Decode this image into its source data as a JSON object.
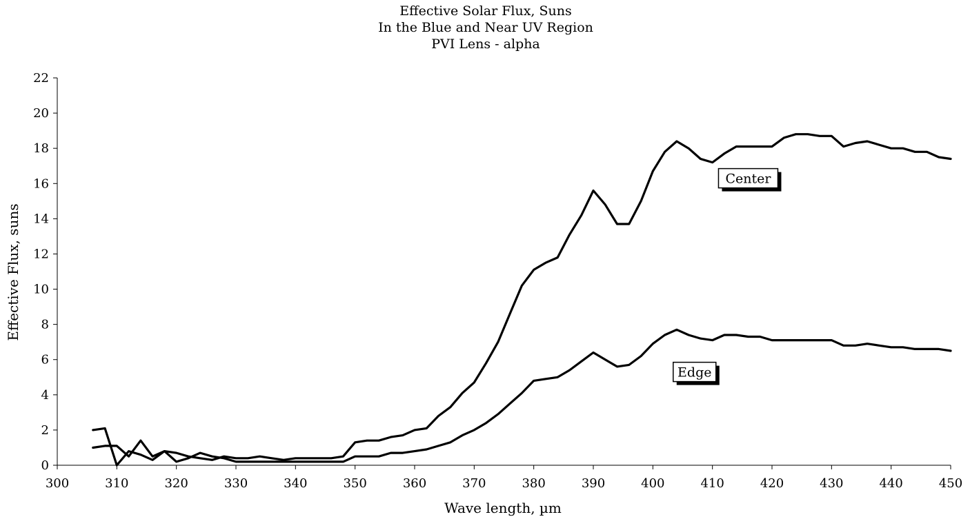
{
  "chart_data": {
    "type": "line",
    "title": [
      "Effective Solar Flux, Suns",
      "In the Blue and Near UV Region",
      "PVI Lens - alpha"
    ],
    "xlabel": "Wave length, µm",
    "ylabel": "Effective Flux, suns",
    "xlim": [
      300,
      450
    ],
    "ylim": [
      0,
      22
    ],
    "xticks": [
      300,
      310,
      320,
      330,
      340,
      350,
      360,
      370,
      380,
      390,
      400,
      410,
      420,
      430,
      440,
      450
    ],
    "yticks": [
      0,
      2,
      4,
      6,
      8,
      10,
      12,
      14,
      16,
      18,
      20,
      22
    ],
    "grid": false,
    "legend": "none",
    "series": [
      {
        "name": "Center",
        "color": "#000000",
        "x": [
          306,
          308,
          310,
          312,
          314,
          316,
          318,
          320,
          322,
          324,
          326,
          328,
          330,
          332,
          334,
          336,
          338,
          340,
          342,
          344,
          346,
          348,
          350,
          352,
          354,
          356,
          358,
          360,
          362,
          364,
          366,
          368,
          370,
          372,
          374,
          376,
          378,
          380,
          382,
          384,
          386,
          388,
          390,
          392,
          394,
          396,
          398,
          400,
          402,
          404,
          406,
          408,
          410,
          412,
          414,
          416,
          418,
          420,
          422,
          424,
          426,
          428,
          430,
          432,
          434,
          436,
          438,
          440,
          442,
          444,
          446,
          448,
          450
        ],
        "y": [
          2.0,
          2.1,
          0.0,
          0.8,
          0.6,
          0.3,
          0.8,
          0.7,
          0.5,
          0.4,
          0.3,
          0.5,
          0.4,
          0.4,
          0.5,
          0.4,
          0.3,
          0.4,
          0.4,
          0.4,
          0.4,
          0.5,
          1.3,
          1.4,
          1.4,
          1.6,
          1.7,
          2.0,
          2.1,
          2.8,
          3.3,
          4.1,
          4.7,
          5.8,
          7.0,
          8.6,
          10.2,
          11.1,
          11.5,
          11.8,
          13.1,
          14.2,
          15.6,
          14.8,
          13.7,
          13.7,
          15.0,
          16.7,
          17.8,
          18.4,
          18.0,
          17.4,
          17.2,
          17.7,
          18.1,
          18.1,
          18.1,
          18.1,
          18.6,
          18.8,
          18.8,
          18.7,
          18.7,
          18.1,
          18.3,
          18.4,
          18.2,
          18.0,
          18.0,
          17.8,
          17.8,
          17.5,
          17.4
        ]
      },
      {
        "name": "Edge",
        "color": "#000000",
        "x": [
          306,
          308,
          310,
          312,
          314,
          316,
          318,
          320,
          322,
          324,
          326,
          328,
          330,
          332,
          334,
          336,
          338,
          340,
          342,
          344,
          346,
          348,
          350,
          352,
          354,
          356,
          358,
          360,
          362,
          364,
          366,
          368,
          370,
          372,
          374,
          376,
          378,
          380,
          382,
          384,
          386,
          388,
          390,
          392,
          394,
          396,
          398,
          400,
          402,
          404,
          406,
          408,
          410,
          412,
          414,
          416,
          418,
          420,
          422,
          424,
          426,
          428,
          430,
          432,
          434,
          436,
          438,
          440,
          442,
          444,
          446,
          448,
          450
        ],
        "y": [
          1.0,
          1.1,
          1.1,
          0.5,
          1.4,
          0.5,
          0.8,
          0.2,
          0.4,
          0.7,
          0.5,
          0.4,
          0.2,
          0.2,
          0.2,
          0.2,
          0.2,
          0.2,
          0.2,
          0.2,
          0.2,
          0.2,
          0.5,
          0.5,
          0.5,
          0.7,
          0.7,
          0.8,
          0.9,
          1.1,
          1.3,
          1.7,
          2.0,
          2.4,
          2.9,
          3.5,
          4.1,
          4.8,
          4.9,
          5.0,
          5.4,
          5.9,
          6.4,
          6.0,
          5.6,
          5.7,
          6.2,
          6.9,
          7.4,
          7.7,
          7.4,
          7.2,
          7.1,
          7.4,
          7.4,
          7.3,
          7.3,
          7.1,
          7.1,
          7.1,
          7.1,
          7.1,
          7.1,
          6.8,
          6.8,
          6.9,
          6.8,
          6.7,
          6.7,
          6.6,
          6.6,
          6.6,
          6.5
        ]
      }
    ],
    "annotations": [
      {
        "text": "Center",
        "series": "Center",
        "x": 416,
        "y": 16.3
      },
      {
        "text": "Edge",
        "series": "Edge",
        "x": 407,
        "y": 5.3
      }
    ]
  }
}
